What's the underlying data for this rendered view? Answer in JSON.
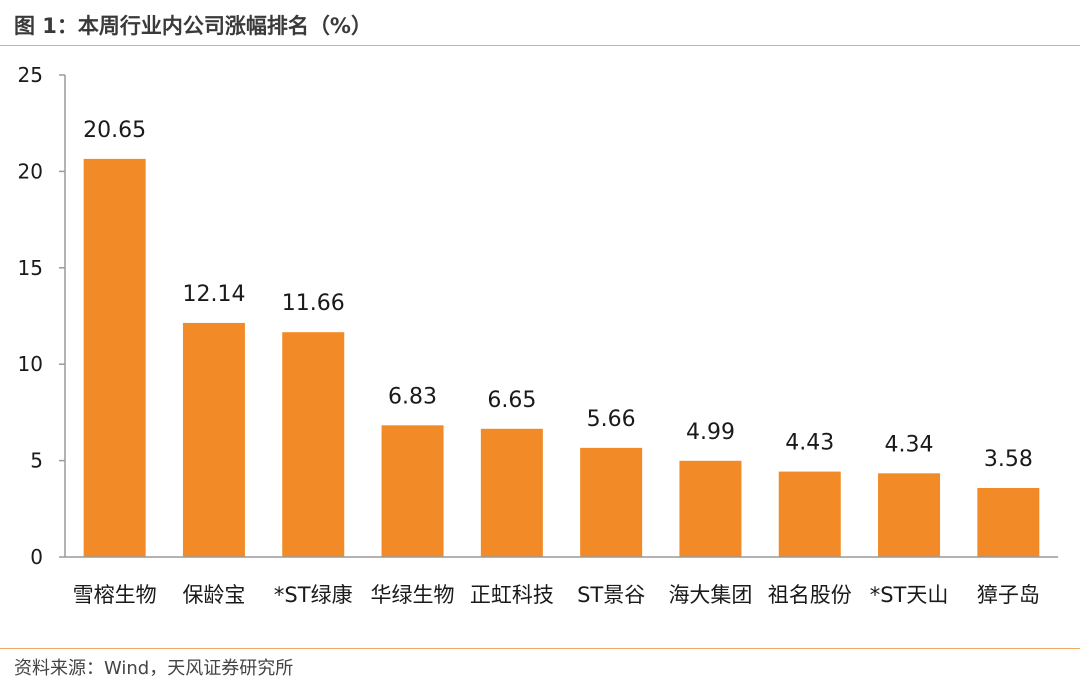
{
  "figure": {
    "title": "图 1：本周行业内公司涨幅排名（%）",
    "source": "资料来源：Wind，天风证券研究所"
  },
  "chart_data": {
    "type": "bar",
    "categories": [
      "雪榕生物",
      "保龄宝",
      "*ST绿康",
      "华绿生物",
      "正虹科技",
      "ST景谷",
      "海大集团",
      "祖名股份",
      "*ST天山",
      "獐子岛"
    ],
    "values": [
      20.65,
      12.14,
      11.66,
      6.83,
      6.65,
      5.66,
      4.99,
      4.43,
      4.34,
      3.58
    ],
    "data_labels": [
      "20.65",
      "12.14",
      "11.66",
      "6.83",
      "6.65",
      "5.66",
      "4.99",
      "4.43",
      "4.34",
      "3.58"
    ],
    "yticks": [
      0,
      5,
      10,
      15,
      20,
      25
    ],
    "ylim": [
      0,
      25
    ],
    "bar_color": "#f28a27",
    "grid": false,
    "legend": "none"
  }
}
